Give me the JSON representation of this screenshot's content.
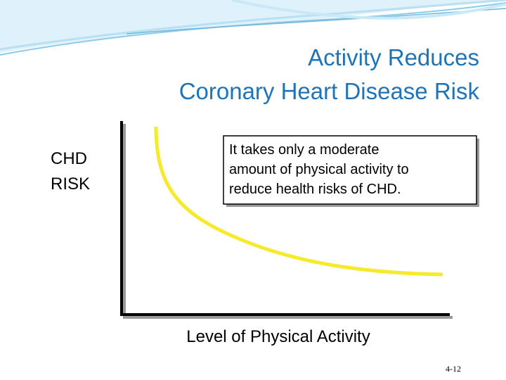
{
  "slide": {
    "title": [
      "Activity Reduces",
      "Coronary Heart Disease Risk"
    ],
    "y_axis_label": [
      "CHD",
      "RISK"
    ],
    "callout": [
      "It takes only a moderate",
      "amount of physical activity to",
      "reduce health risks of CHD."
    ],
    "x_axis_label": "Level of Physical Activity",
    "page_number": "4-12"
  }
}
